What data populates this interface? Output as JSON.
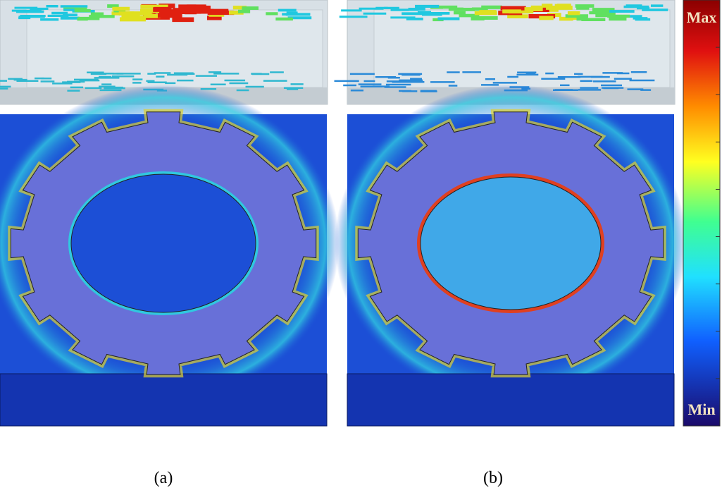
{
  "panels": [
    {
      "label": "(a)"
    },
    {
      "label": "(b)"
    }
  ],
  "colorbar": {
    "max_label": "Max",
    "min_label": "Min"
  }
}
